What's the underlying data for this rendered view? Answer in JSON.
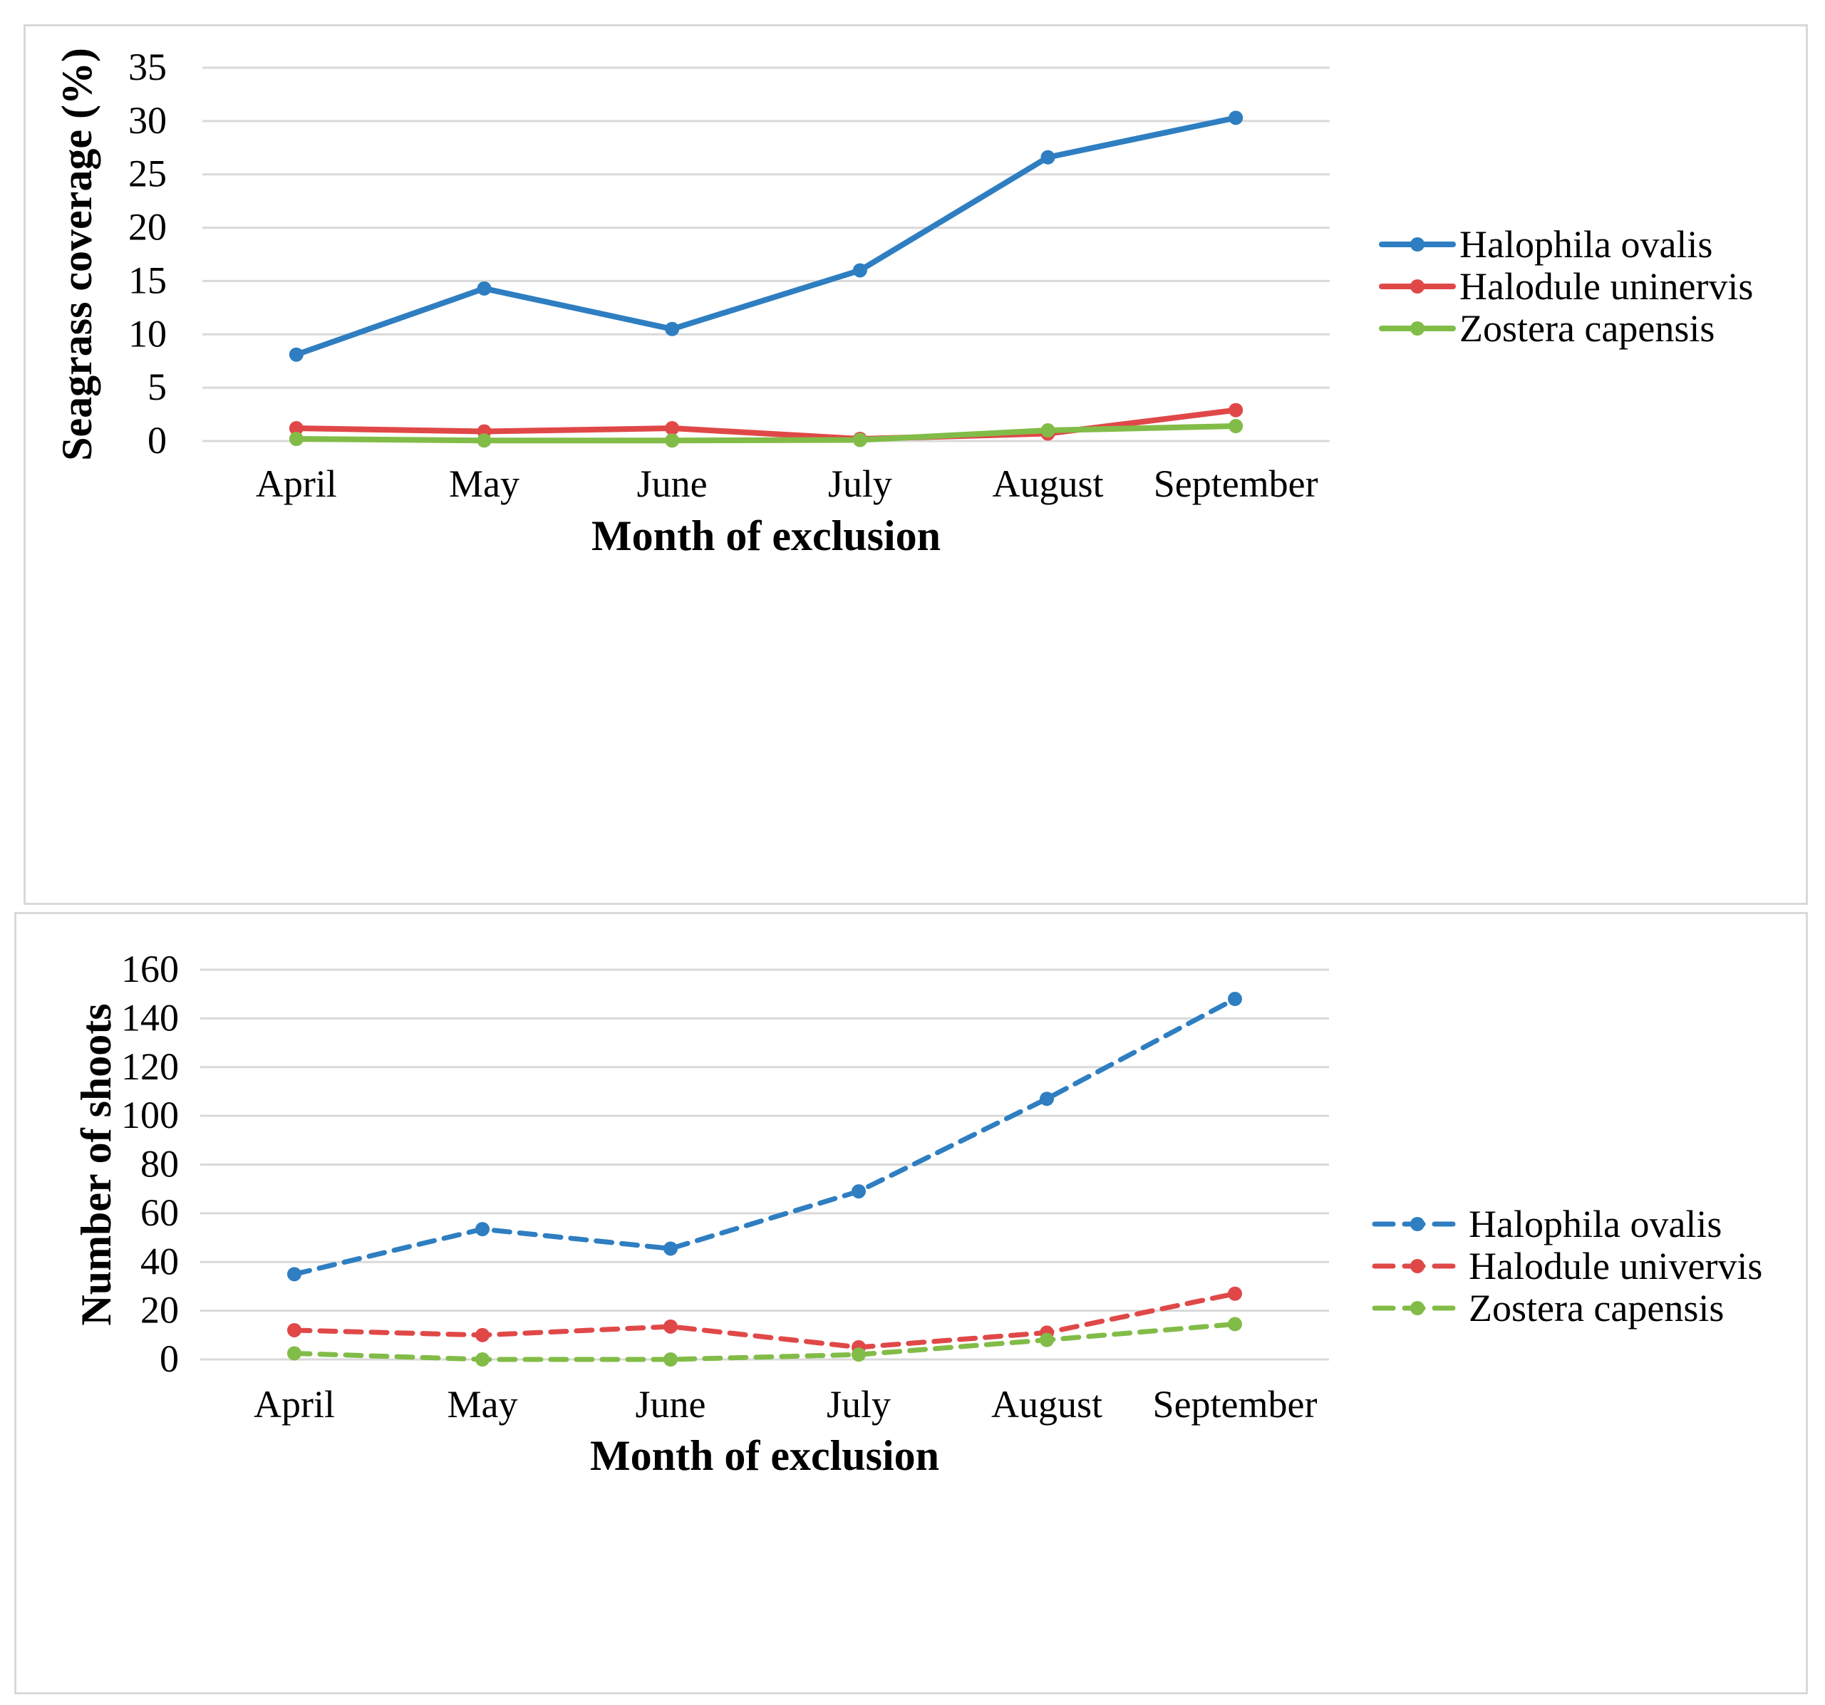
{
  "colors": {
    "blue": "#2e7ec1",
    "red": "#e04848",
    "green": "#82bc48",
    "grid": "#d9d9d9"
  },
  "chart_data": [
    {
      "type": "line",
      "style": "solid",
      "categories": [
        "April",
        "May",
        "June",
        "July",
        "August",
        "September"
      ],
      "ylabel": "Seagrass coverage (%)",
      "xlabel": "Month of exclusion",
      "ylim": [
        0,
        35
      ],
      "yticks": [
        0,
        5,
        10,
        15,
        20,
        25,
        30,
        35
      ],
      "series": [
        {
          "name": "Halophila ovalis",
          "color": "#2e7ec1",
          "values": [
            8.1,
            14.3,
            10.5,
            16.0,
            26.6,
            30.3
          ]
        },
        {
          "name": "Halodule uninervis",
          "color": "#e04848",
          "values": [
            1.2,
            0.9,
            1.2,
            0.2,
            0.7,
            2.9
          ]
        },
        {
          "name": "Zostera capensis",
          "color": "#82bc48",
          "values": [
            0.2,
            0.05,
            0.05,
            0.1,
            1.0,
            1.4
          ]
        }
      ],
      "legend": "right"
    },
    {
      "type": "line",
      "style": "dashed",
      "categories": [
        "April",
        "May",
        "June",
        "July",
        "August",
        "September"
      ],
      "ylabel": "Number of shoots",
      "xlabel": "Month of exclusion",
      "ylim": [
        0,
        160
      ],
      "yticks": [
        0,
        20,
        40,
        60,
        80,
        100,
        120,
        140,
        160
      ],
      "series": [
        {
          "name": "Halophila ovalis",
          "color": "#2e7ec1",
          "values": [
            35,
            53.5,
            45.5,
            69,
            107,
            148
          ]
        },
        {
          "name": "Halodule univervis",
          "color": "#e04848",
          "values": [
            12,
            10,
            13.5,
            5,
            11,
            27
          ]
        },
        {
          "name": "Zostera capensis",
          "color": "#82bc48",
          "values": [
            2.5,
            0,
            0,
            2,
            8,
            14.5
          ]
        }
      ],
      "legend": "right"
    }
  ]
}
